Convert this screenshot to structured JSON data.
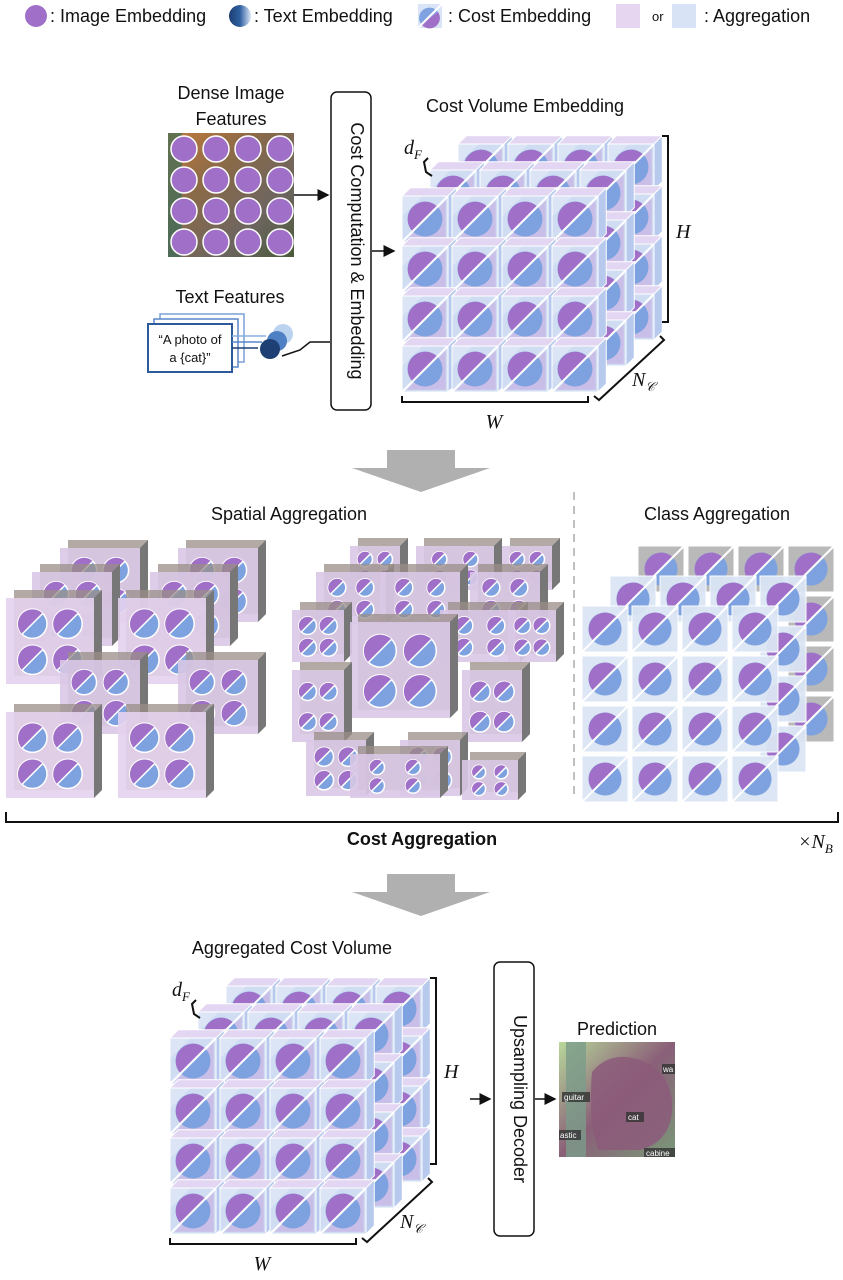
{
  "legend": {
    "image_embedding": ": Image Embedding",
    "text_embedding": ": Text Embedding",
    "cost_embedding": ": Cost Embedding",
    "or": "or",
    "aggregation": ": Aggregation"
  },
  "top": {
    "dense_image_line1": "Dense Image",
    "dense_image_line2": "Features",
    "text_features": "Text Features",
    "prompt_line1": "“A photo of",
    "prompt_line2": "a {cat}”",
    "cost_computation": "Cost Computation & Embedding",
    "cost_volume_title": "Cost Volume Embedding",
    "dF": "d",
    "dF_sub": "F",
    "H": "H",
    "W": "W",
    "NC": "N",
    "NC_sub": "𝒞"
  },
  "middle": {
    "spatial_title": "Spatial Aggregation",
    "class_title": "Class Aggregation",
    "cost_aggregation": "Cost Aggregation",
    "times_NB": "×N",
    "NB_sub": "B"
  },
  "bottom": {
    "aggregated_title": "Aggregated Cost Volume",
    "dF": "d",
    "dF_sub": "F",
    "H": "H",
    "W": "W",
    "NC": "N",
    "NC_sub": "𝒞",
    "decoder": "Upsampling Decoder",
    "prediction": "Prediction",
    "tags": {
      "guitar": "guitar",
      "cat": "cat",
      "plastic": "astic",
      "cabinet": "cabine",
      "wall": "wa"
    }
  },
  "colors": {
    "purple": "#a070c8",
    "blue": "#5a8fd8",
    "light_blue": "#cfdcf2",
    "light_purple": "#e6d6f0",
    "arrow_gray": "#b0b0b0"
  }
}
